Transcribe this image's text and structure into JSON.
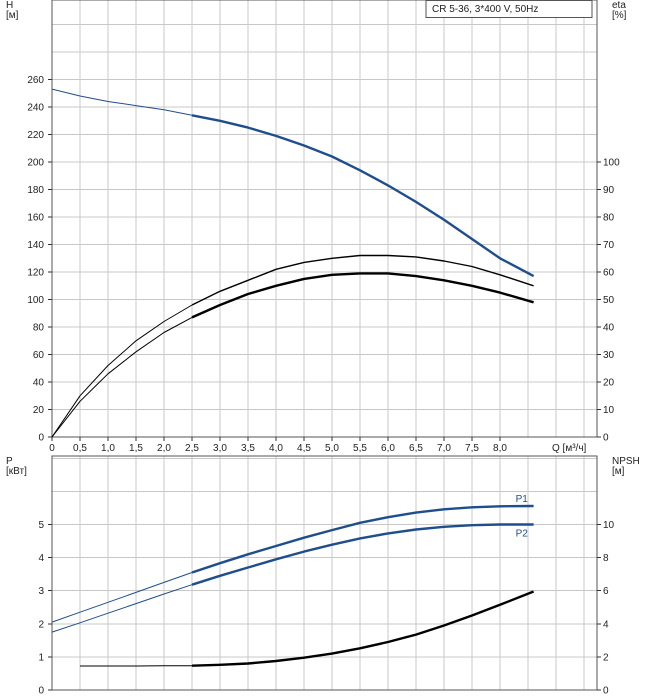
{
  "chart_data": [
    {
      "type": "line",
      "title": "CR 5-36, 3*400 V, 50Hz",
      "xlabel": "Q [м³/ч]",
      "ylabel": "H\n[м]",
      "ylabel_right": "eta\n[%]",
      "xlim": [
        0,
        9.0
      ],
      "ylim": [
        0,
        260
      ],
      "ylim_right": [
        0,
        100
      ],
      "x_ticks": [
        "0",
        "0,5",
        "1,0",
        "1,5",
        "2,0",
        "2,5",
        "3,0",
        "3,5",
        "4,0",
        "4,5",
        "5,0",
        "5,5",
        "6,0",
        "6,5",
        "7,0",
        "7,5",
        "8,0"
      ],
      "y_ticks": [
        "0",
        "20",
        "40",
        "60",
        "80",
        "100",
        "120",
        "140",
        "160",
        "180",
        "200",
        "220",
        "240",
        "260"
      ],
      "y_ticks_right": [
        "0",
        "10",
        "20",
        "30",
        "40",
        "50",
        "60",
        "70",
        "80",
        "90",
        "100"
      ],
      "grid": true,
      "series": [
        {
          "axis": "left",
          "color": "#1f4e8c",
          "x": [
            0,
            0.5,
            1.0,
            1.5,
            2.0,
            2.5,
            3.0,
            3.5,
            4.0,
            4.5,
            5.0,
            5.5,
            6.0,
            6.5,
            7.0,
            7.5,
            8.0,
            8.6
          ],
          "y": [
            253,
            248,
            244,
            241,
            238,
            234,
            230,
            225,
            219,
            212,
            204,
            194,
            183,
            171,
            158,
            144,
            130,
            117
          ]
        },
        {
          "axis": "right",
          "color": "#000000",
          "x": [
            0,
            0.5,
            1.0,
            1.5,
            2.0,
            2.5,
            3.0,
            3.5,
            4.0,
            4.5,
            5.0,
            5.5,
            6.0,
            6.5,
            7.0,
            7.5,
            8.0,
            8.6
          ],
          "y": [
            0,
            15,
            26,
            35,
            42,
            48,
            53,
            57,
            61,
            63.5,
            65,
            66,
            66,
            65.5,
            64,
            62,
            59,
            55
          ]
        },
        {
          "axis": "right",
          "color": "#000000",
          "x": [
            0,
            0.5,
            1.0,
            1.5,
            2.0,
            2.5,
            3.0,
            3.5,
            4.0,
            4.5,
            5.0,
            5.5,
            6.0,
            6.5,
            7.0,
            7.5,
            8.0,
            8.6
          ],
          "y": [
            0,
            13,
            23,
            31,
            38,
            43.5,
            48,
            52,
            55,
            57.5,
            59,
            59.5,
            59.5,
            58.5,
            57,
            55,
            52.5,
            49
          ]
        }
      ]
    },
    {
      "type": "line",
      "xlabel": "",
      "ylabel": "P\n[кВт]",
      "ylabel_right": "NPSH\n[м]",
      "xlim": [
        0,
        9.0
      ],
      "ylim": [
        0,
        6
      ],
      "ylim_right": [
        0,
        12
      ],
      "y_ticks": [
        "0",
        "1",
        "2",
        "3",
        "4",
        "5"
      ],
      "y_ticks_right": [
        "0",
        "2",
        "4",
        "6",
        "8",
        "10"
      ],
      "grid": true,
      "series": [
        {
          "name": "P1",
          "axis": "left",
          "color": "#1f4e8c",
          "x": [
            0,
            0.5,
            1.0,
            1.5,
            2.0,
            2.5,
            3.0,
            3.5,
            4.0,
            4.5,
            5.0,
            5.5,
            6.0,
            6.5,
            7.0,
            7.5,
            8.0,
            8.6
          ],
          "y": [
            2.05,
            2.35,
            2.65,
            2.95,
            3.25,
            3.55,
            3.83,
            4.1,
            4.35,
            4.6,
            4.83,
            5.05,
            5.22,
            5.36,
            5.46,
            5.52,
            5.55,
            5.56
          ]
        },
        {
          "name": "P2",
          "axis": "left",
          "color": "#1f4e8c",
          "x": [
            0,
            0.5,
            1.0,
            1.5,
            2.0,
            2.5,
            3.0,
            3.5,
            4.0,
            4.5,
            5.0,
            5.5,
            6.0,
            6.5,
            7.0,
            7.5,
            8.0,
            8.6
          ],
          "y": [
            1.75,
            2.03,
            2.32,
            2.61,
            2.9,
            3.18,
            3.45,
            3.7,
            3.95,
            4.18,
            4.39,
            4.58,
            4.73,
            4.85,
            4.93,
            4.98,
            5.0,
            5.0
          ]
        },
        {
          "axis": "right",
          "color": "#000000",
          "x": [
            0.5,
            1.0,
            1.5,
            2.0,
            2.5,
            3.0,
            3.5,
            4.0,
            4.5,
            5.0,
            5.5,
            6.0,
            6.5,
            7.0,
            7.5,
            8.0,
            8.6
          ],
          "y": [
            1.45,
            1.45,
            1.45,
            1.46,
            1.47,
            1.52,
            1.6,
            1.75,
            1.95,
            2.2,
            2.52,
            2.9,
            3.35,
            3.9,
            4.5,
            5.15,
            5.95
          ]
        }
      ]
    }
  ]
}
